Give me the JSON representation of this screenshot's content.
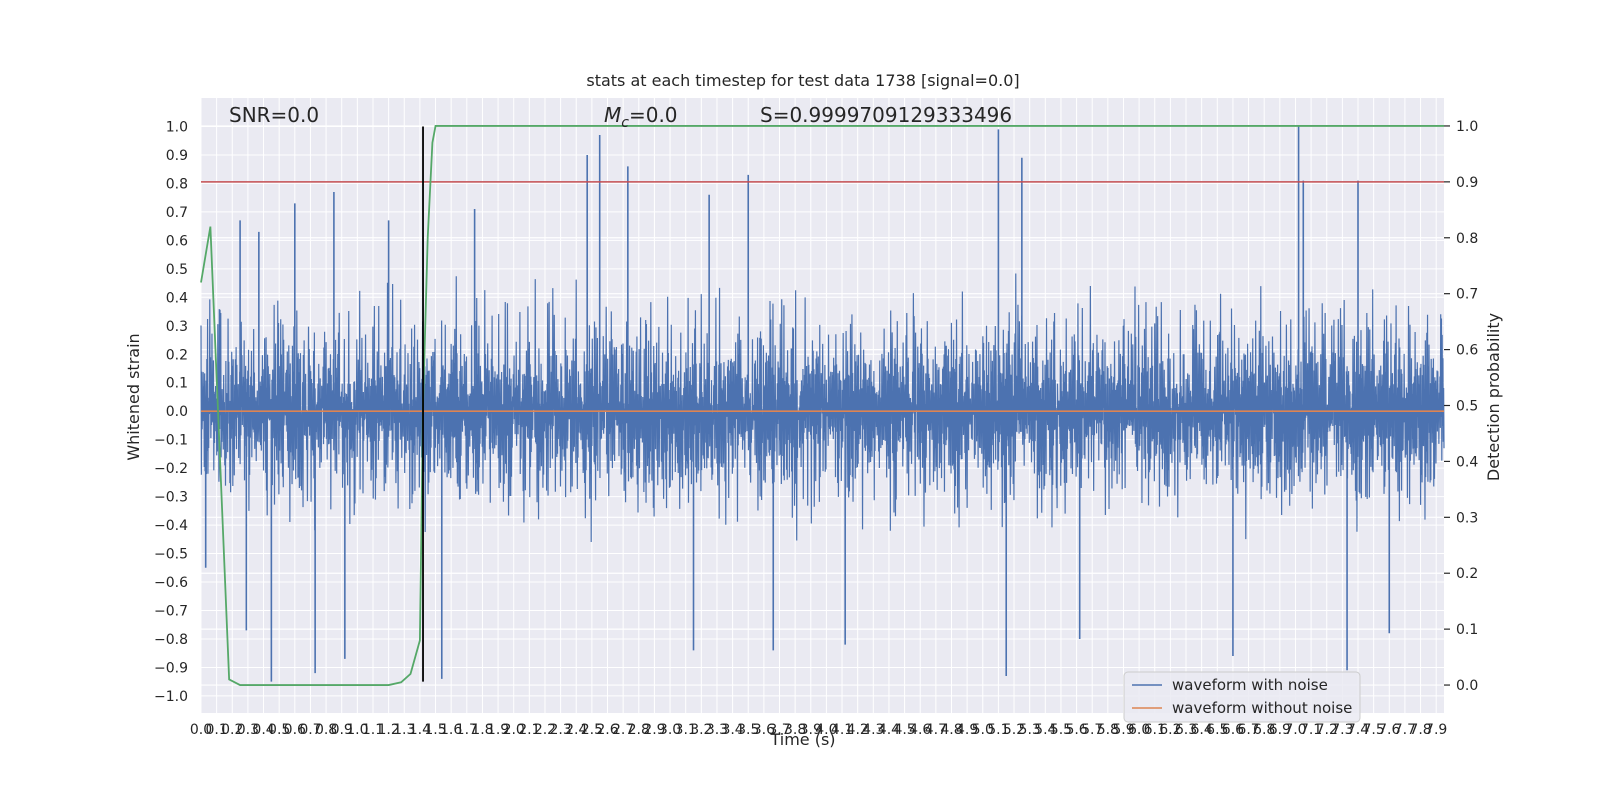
{
  "chart_data": {
    "type": "line",
    "title": "stats at each timestep for test data 1738 [signal=0.0]",
    "xlabel": "Time (s)",
    "ylabel": "Whitened strain",
    "y2label": "Detection probability",
    "xlim": [
      0.0,
      7.95
    ],
    "ylim": [
      -1.06,
      1.1
    ],
    "y2lim": [
      -0.05,
      1.05
    ],
    "x_ticks": [
      0.0,
      0.1,
      0.2,
      0.3,
      0.4,
      0.5,
      0.6,
      0.7,
      0.8,
      0.9,
      1.0,
      1.1,
      1.2,
      1.3,
      1.4,
      1.5,
      1.6,
      1.7,
      1.8,
      1.9,
      2.0,
      2.1,
      2.2,
      2.3,
      2.4,
      2.5,
      2.6,
      2.7,
      2.8,
      2.9,
      3.0,
      3.1,
      3.2,
      3.3,
      3.4,
      3.5,
      3.6,
      3.7,
      3.8,
      3.9,
      4.0,
      4.1,
      4.2,
      4.3,
      4.4,
      4.5,
      4.6,
      4.7,
      4.8,
      4.9,
      5.0,
      5.1,
      5.2,
      5.3,
      5.4,
      5.5,
      5.6,
      5.7,
      5.8,
      5.9,
      6.0,
      6.1,
      6.2,
      6.3,
      6.4,
      6.5,
      6.6,
      6.7,
      6.8,
      6.9,
      7.0,
      7.1,
      7.2,
      7.3,
      7.4,
      7.5,
      7.6,
      7.7,
      7.8,
      7.9
    ],
    "x_tick_labels": [
      "0.0",
      "0.1",
      "0.2",
      "0.3",
      "0.4",
      "0.5",
      "0.6",
      "0.7",
      "0.8",
      "0.9",
      "1.0",
      "1.1",
      "1.2",
      "1.3",
      "1.4",
      "1.5",
      "1.6",
      "1.7",
      "1.8",
      "1.9",
      "2.0",
      "2.1",
      "2.2",
      "2.3",
      "2.4",
      "2.5",
      "2.6",
      "2.7",
      "2.8",
      "2.9",
      "3.0",
      "3.1",
      "3.2",
      "3.3",
      "3.4",
      "3.5",
      "3.6",
      "3.7",
      "3.8",
      "3.9",
      "4.0",
      "4.1",
      "4.2",
      "4.3",
      "4.4",
      "4.5",
      "4.6",
      "4.7",
      "4.8",
      "4.9",
      "5.0",
      "5.1",
      "5.2",
      "5.3",
      "5.4",
      "5.5",
      "5.6",
      "5.7",
      "5.8",
      "5.9",
      "6.0",
      "6.1",
      "6.2",
      "6.3",
      "6.4",
      "6.5",
      "6.6",
      "6.7",
      "6.8",
      "6.9",
      "7.0",
      "7.1",
      "7.2",
      "7.3",
      "7.4",
      "7.5",
      "7.6",
      "7.7",
      "7.8",
      "7.9"
    ],
    "y_ticks": [
      -1.0,
      -0.9,
      -0.8,
      -0.7,
      -0.6,
      -0.5,
      -0.4,
      -0.3,
      -0.2,
      -0.1,
      0.0,
      0.1,
      0.2,
      0.3,
      0.4,
      0.5,
      0.6,
      0.7,
      0.8,
      0.9,
      1.0
    ],
    "y_tick_labels": [
      "−1.0",
      "−0.9",
      "−0.8",
      "−0.7",
      "−0.6",
      "−0.5",
      "−0.4",
      "−0.3",
      "−0.2",
      "−0.1",
      "0.0",
      "0.1",
      "0.2",
      "0.3",
      "0.4",
      "0.5",
      "0.6",
      "0.7",
      "0.8",
      "0.9",
      "1.0"
    ],
    "y2_ticks": [
      0.0,
      0.1,
      0.2,
      0.3,
      0.4,
      0.5,
      0.6,
      0.7,
      0.8,
      0.9,
      1.0
    ],
    "y2_tick_labels": [
      "0.0",
      "0.1",
      "0.2",
      "0.3",
      "0.4",
      "0.5",
      "0.6",
      "0.7",
      "0.8",
      "0.9",
      "1.0"
    ],
    "grid": true,
    "legend_position": "lower-right",
    "colors": {
      "plot_background": "#eaeaf2",
      "grid": "#ffffff",
      "waveform_with_noise": "#4c72b0",
      "waveform_without_noise": "#dd8452",
      "detection_probability": "#55a868",
      "threshold": "#c44e52",
      "marker": "#000000"
    },
    "annotations": {
      "snr": "SNR=0.0",
      "mc_symbol": "M",
      "mc_subscript": "c",
      "mc_value": "=0.0",
      "s": "S=0.9999709129333496"
    },
    "series": [
      {
        "name": "waveform with noise",
        "axis": "left",
        "values_description_free": true,
        "sample_rate": 512,
        "envelope_typical": 0.45,
        "peaks": [
          [
            0.03,
            -0.55
          ],
          [
            0.25,
            0.67
          ],
          [
            0.29,
            -0.77
          ],
          [
            0.37,
            0.63
          ],
          [
            0.45,
            -0.95
          ],
          [
            0.6,
            0.73
          ],
          [
            0.73,
            -0.92
          ],
          [
            0.85,
            0.77
          ],
          [
            0.92,
            -0.87
          ],
          [
            1.2,
            0.67
          ],
          [
            1.54,
            -0.94
          ],
          [
            1.75,
            0.71
          ],
          [
            2.47,
            0.9
          ],
          [
            2.55,
            0.97
          ],
          [
            2.73,
            0.86
          ],
          [
            3.15,
            -0.84
          ],
          [
            3.25,
            0.76
          ],
          [
            3.5,
            0.83
          ],
          [
            3.66,
            -0.84
          ],
          [
            4.12,
            -0.82
          ],
          [
            5.1,
            0.99
          ],
          [
            5.15,
            -0.93
          ],
          [
            5.25,
            0.89
          ],
          [
            5.62,
            -0.8
          ],
          [
            6.6,
            -0.86
          ],
          [
            7.02,
            1.0
          ],
          [
            7.05,
            0.81
          ],
          [
            7.33,
            -0.91
          ],
          [
            7.4,
            0.81
          ],
          [
            7.6,
            -0.78
          ]
        ]
      },
      {
        "name": "waveform without noise",
        "axis": "left",
        "x": [
          0.0,
          7.95
        ],
        "values": [
          0.0,
          0.0
        ]
      },
      {
        "name": "detection probability",
        "axis": "right",
        "x": [
          0.0,
          0.06,
          0.18,
          0.25,
          0.4,
          0.8,
          1.0,
          1.2,
          1.28,
          1.34,
          1.4,
          1.42,
          1.45,
          1.48,
          1.5,
          1.52,
          2.0,
          4.0,
          6.0,
          7.95
        ],
        "values": [
          0.72,
          0.82,
          0.01,
          0.0,
          0.0,
          0.0,
          0.0,
          0.0,
          0.005,
          0.02,
          0.08,
          0.5,
          0.8,
          0.97,
          1.0,
          1.0,
          1.0,
          1.0,
          1.0,
          1.0
        ]
      },
      {
        "name": "threshold",
        "axis": "right",
        "x": [
          0.0,
          7.95
        ],
        "values": [
          0.9,
          0.9
        ]
      }
    ],
    "marker_line": {
      "x": 1.42,
      "y_range": [
        -0.95,
        1.0
      ]
    }
  }
}
